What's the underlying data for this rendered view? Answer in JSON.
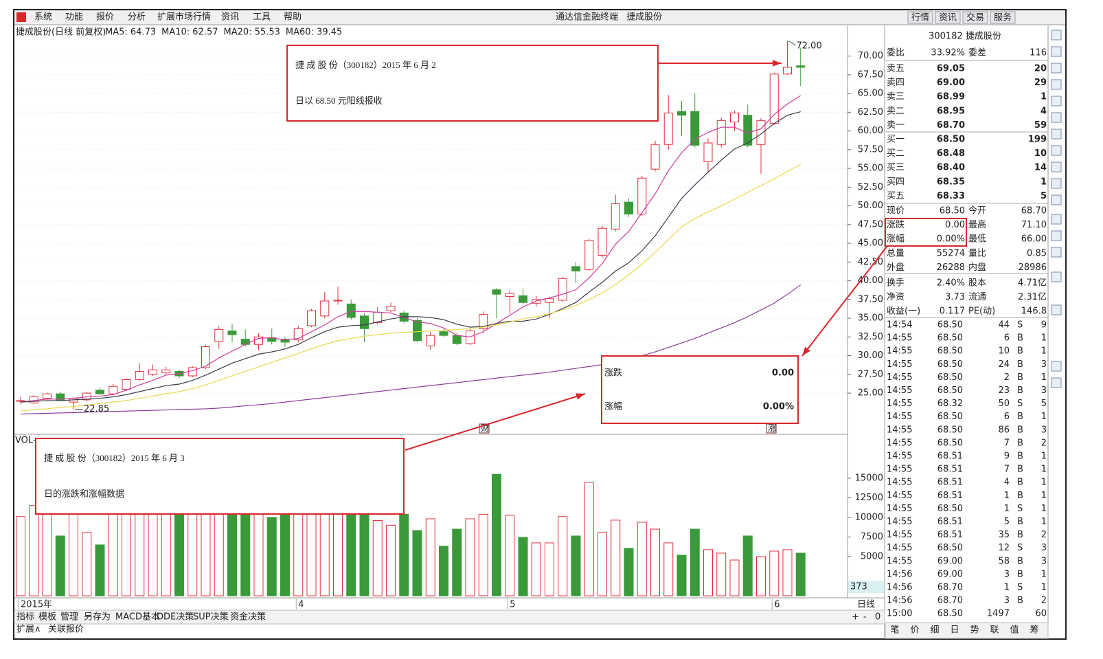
{
  "menu": {
    "items": [
      "系统",
      "功能",
      "报价",
      "分析",
      "扩展市场行情",
      "资讯",
      "工具",
      "帮助"
    ],
    "title": [
      "通达信金融终端",
      "捷成股份"
    ],
    "buttons": [
      "行情",
      "资讯",
      "交易",
      "服务"
    ]
  },
  "chart_data": {
    "type": "candlestick",
    "title": "捷成股份(日线 前复权)",
    "categories": [
      "2015年",
      null,
      null,
      null,
      null,
      null,
      null,
      null,
      null,
      null,
      null,
      null,
      null,
      null,
      null,
      null,
      null,
      null,
      null,
      null,
      null,
      "4",
      null,
      null,
      null,
      null,
      null,
      null,
      null,
      null,
      null,
      null,
      null,
      null,
      null,
      null,
      null,
      "5",
      null,
      null,
      null,
      null,
      null,
      null,
      null,
      null,
      null,
      null,
      null,
      null,
      null,
      null,
      null,
      null,
      null,
      null,
      null,
      "6",
      null,
      null
    ],
    "open": [
      24.0,
      23.7,
      24.3,
      24.9,
      23.8,
      24.1,
      25.4,
      24.9,
      25.5,
      26.8,
      27.5,
      27.7,
      27.9,
      27.3,
      28.4,
      31.9,
      33.3,
      32.2,
      31.5,
      32.4,
      32.2,
      32.1,
      34.0,
      35.3,
      37.3,
      36.9,
      35.3,
      34.4,
      36.0,
      35.7,
      34.7,
      31.3,
      33.2,
      32.7,
      31.6,
      33.6,
      38.8,
      37.9,
      38.0,
      37.0,
      37.1,
      37.4,
      41.9,
      41.5,
      43.4,
      46.9,
      50.5,
      48.9,
      54.9,
      58.2,
      62.6,
      62.6,
      55.9,
      58.2,
      61.2,
      62.1,
      58.2,
      61.0,
      67.6,
      68.7
    ],
    "close": [
      24.0,
      24.5,
      24.9,
      24.0,
      24.3,
      25.0,
      24.9,
      25.9,
      26.8,
      27.9,
      28.1,
      28.1,
      27.3,
      28.4,
      31.2,
      33.5,
      32.8,
      31.5,
      32.5,
      31.9,
      31.8,
      33.6,
      36.0,
      37.3,
      37.4,
      35.1,
      33.6,
      35.8,
      36.6,
      34.6,
      32.0,
      32.7,
      32.7,
      31.6,
      33.3,
      35.5,
      38.2,
      38.3,
      37.1,
      37.5,
      37.6,
      40.3,
      41.3,
      45.4,
      47.0,
      50.3,
      48.9,
      53.7,
      58.2,
      62.4,
      62.1,
      58.1,
      58.4,
      61.4,
      62.4,
      58.1,
      61.4,
      67.6,
      68.5,
      68.5
    ],
    "high": [
      24.5,
      24.7,
      25.1,
      25.2,
      24.5,
      25.2,
      25.8,
      26.2,
      27.0,
      29.0,
      28.8,
      28.5,
      28.1,
      28.6,
      31.4,
      34.0,
      34.2,
      33.5,
      33.0,
      33.6,
      32.5,
      34.0,
      36.2,
      38.5,
      39.2,
      37.5,
      35.6,
      36.5,
      37.1,
      36.0,
      35.0,
      33.2,
      33.6,
      33.0,
      33.6,
      35.9,
      39.0,
      38.7,
      39.0,
      38.0,
      37.8,
      40.5,
      42.5,
      45.6,
      47.3,
      51.5,
      51.0,
      54.0,
      58.7,
      64.8,
      64.0,
      65.0,
      59.0,
      61.8,
      62.7,
      63.5,
      61.7,
      67.8,
      72.0,
      71.1
    ],
    "low": [
      23.5,
      23.5,
      24.1,
      23.9,
      22.85,
      23.9,
      24.8,
      24.8,
      25.3,
      26.6,
      27.3,
      27.5,
      27.0,
      27.1,
      28.2,
      30.9,
      31.8,
      31.2,
      30.8,
      31.5,
      31.2,
      31.8,
      33.8,
      35.0,
      36.8,
      34.8,
      31.8,
      34.2,
      35.8,
      34.3,
      31.8,
      30.8,
      32.5,
      31.4,
      31.4,
      33.3,
      35.0,
      35.6,
      36.9,
      36.5,
      35.0,
      37.2,
      39.7,
      41.3,
      43.1,
      46.6,
      48.5,
      48.6,
      54.6,
      57.5,
      59.3,
      57.8,
      54.5,
      57.8,
      60.0,
      57.8,
      54.3,
      60.8,
      67.5,
      66.0
    ],
    "up_color": "#e0303a",
    "down_color": "#3a9a3a",
    "series": [
      {
        "name": "MA5: 64.73",
        "color": "#d03c9c",
        "values": [
          23.8,
          24.0,
          24.2,
          24.2,
          24.3,
          24.5,
          24.6,
          24.8,
          25.4,
          26.1,
          26.7,
          27.4,
          27.6,
          28.0,
          28.6,
          29.7,
          30.6,
          31.5,
          32.3,
          32.4,
          32.1,
          32.3,
          33.2,
          34.1,
          35.2,
          35.9,
          35.9,
          35.8,
          35.7,
          35.1,
          34.5,
          34.3,
          33.7,
          32.7,
          32.5,
          33.2,
          34.3,
          35.4,
          36.5,
          37.3,
          37.7,
          38.2,
          38.8,
          40.4,
          42.3,
          44.9,
          46.6,
          49.1,
          51.6,
          54.7,
          57.1,
          58.9,
          59.8,
          60.5,
          60.5,
          59.7,
          60.3,
          62.2,
          63.6,
          64.73
        ]
      },
      {
        "name": "MA10: 62.57",
        "color": "#3a3a4a",
        "values": [
          23.8,
          23.9,
          24.0,
          24.0,
          24.1,
          24.2,
          24.3,
          24.5,
          24.8,
          25.2,
          25.6,
          26.0,
          26.2,
          26.7,
          27.4,
          28.2,
          29.0,
          29.6,
          30.2,
          30.5,
          30.9,
          31.5,
          32.4,
          33.2,
          33.8,
          34.0,
          34.1,
          34.5,
          34.9,
          35.2,
          35.2,
          35.1,
          34.8,
          34.2,
          33.8,
          33.9,
          34.3,
          34.6,
          34.6,
          34.9,
          35.5,
          36.3,
          37.1,
          38.5,
          39.8,
          41.3,
          42.4,
          44.0,
          46.0,
          48.5,
          51.0,
          52.8,
          54.5,
          56.1,
          57.6,
          58.4,
          59.6,
          61.0,
          62.1,
          62.57
        ]
      },
      {
        "name": "MA20: 55.53",
        "color": "#e8d84a",
        "values": [
          22.6,
          22.8,
          22.9,
          23.1,
          23.2,
          23.4,
          23.6,
          23.8,
          24.0,
          24.3,
          24.6,
          24.9,
          25.2,
          25.6,
          26.1,
          26.7,
          27.3,
          27.9,
          28.5,
          29.1,
          29.7,
          30.3,
          30.9,
          31.5,
          32.0,
          32.3,
          32.6,
          32.8,
          33.0,
          33.1,
          33.2,
          33.3,
          33.4,
          33.5,
          33.6,
          33.8,
          34.1,
          34.5,
          34.9,
          35.2,
          35.6,
          36.1,
          36.7,
          37.5,
          38.4,
          39.5,
          40.8,
          42.2,
          43.8,
          45.5,
          47.2,
          48.3,
          49.2,
          50.0,
          50.9,
          51.8,
          52.7,
          53.6,
          54.6,
          55.53
        ]
      },
      {
        "name": "MA60: 39.45",
        "color": "#8a3a9a",
        "values": [
          22.2,
          22.25,
          22.3,
          22.35,
          22.4,
          22.45,
          22.5,
          22.55,
          22.6,
          22.65,
          22.7,
          22.75,
          22.8,
          22.85,
          22.9,
          23.0,
          23.15,
          23.3,
          23.45,
          23.6,
          23.8,
          24.0,
          24.2,
          24.4,
          24.6,
          24.8,
          25.0,
          25.2,
          25.4,
          25.6,
          25.8,
          26.0,
          26.2,
          26.4,
          26.6,
          26.8,
          27.0,
          27.2,
          27.4,
          27.6,
          27.8,
          28.05,
          28.3,
          28.55,
          28.8,
          29.1,
          29.5,
          30.0,
          30.5,
          31.1,
          31.7,
          32.3,
          33.0,
          33.7,
          34.4,
          35.2,
          36.1,
          37.0,
          38.2,
          39.45
        ]
      }
    ],
    "ylim": [
      19.5,
      74
    ],
    "yticks": [
      {
        "value": 70,
        "label": "70.00"
      },
      {
        "value": 67.5,
        "label": "67.50"
      },
      {
        "value": 65,
        "label": "65.00"
      },
      {
        "value": 62.5,
        "label": "62.50"
      },
      {
        "value": 60,
        "label": "60.00"
      },
      {
        "value": 57.5,
        "label": "57.50"
      },
      {
        "value": 55,
        "label": "55.00"
      },
      {
        "value": 52.5,
        "label": "52.50"
      },
      {
        "value": 50,
        "label": "50.00"
      },
      {
        "value": 47.5,
        "label": "47.50"
      },
      {
        "value": 45,
        "label": "45.00"
      },
      {
        "value": 42.5,
        "label": "42.50"
      },
      {
        "value": 40,
        "label": "40.00"
      },
      {
        "value": 37.5,
        "label": "37.50"
      },
      {
        "value": 35,
        "label": "35.00"
      },
      {
        "value": 32.5,
        "label": "32.50"
      },
      {
        "value": 30,
        "label": "30.00"
      },
      {
        "value": 27.5,
        "label": "27.50"
      },
      {
        "value": 25,
        "label": "25.00"
      }
    ],
    "grid": true,
    "high_label": "72.00",
    "low_label": "22.85",
    "badges": [
      "财",
      "涨"
    ],
    "volume": {
      "label": "VOL-",
      "values": [
        10100,
        11500,
        12000,
        7630,
        13000,
        8070,
        6490,
        14000,
        12000,
        13000,
        12000,
        11000,
        10500,
        14000,
        16000,
        17000,
        13000,
        12500,
        11000,
        10000,
        11000,
        12000,
        11500,
        13500,
        12000,
        10800,
        10400,
        9600,
        9000,
        10400,
        8330,
        9820,
        6320,
        8500,
        9820,
        10400,
        15500,
        10260,
        7460,
        6750,
        6750,
        10100,
        7630,
        14470,
        8070,
        9650,
        6050,
        9390,
        8500,
        6750,
        5180,
        8500,
        5880,
        5440,
        4560,
        7630,
        5000,
        5700,
        5880,
        5440
      ],
      "ylim": [
        0,
        20600
      ],
      "yticks": [
        15000,
        12500,
        10000,
        7500,
        5000
      ],
      "side_label": "373"
    }
  },
  "annotations": [
    {
      "lines": [
        "捷 成 股 份（300182）2015 年 6 月 2",
        "日以 68.50 元阳线报收"
      ]
    },
    {
      "lines": [
        "捷 成 股 份（300182）2015 年 6 月 3",
        "日的涨跌和涨幅数据"
      ]
    }
  ],
  "callout": {
    "rows": [
      [
        "涨跌",
        "0.00"
      ],
      [
        "涨幅",
        "0.00%"
      ]
    ]
  },
  "quote": {
    "header": "300182 捷成股份",
    "ratio": [
      "委比",
      "33.92%",
      "委差",
      "116"
    ],
    "sells": [
      [
        "卖五",
        "69.05",
        "20"
      ],
      [
        "卖四",
        "69.00",
        "29"
      ],
      [
        "卖三",
        "68.99",
        "1"
      ],
      [
        "卖二",
        "68.95",
        "4"
      ],
      [
        "卖一",
        "68.70",
        "59"
      ]
    ],
    "buys": [
      [
        "买一",
        "68.50",
        "199"
      ],
      [
        "买二",
        "68.48",
        "10"
      ],
      [
        "买三",
        "68.40",
        "14"
      ],
      [
        "买四",
        "68.35",
        "1"
      ],
      [
        "买五",
        "68.33",
        "5"
      ]
    ],
    "stats": [
      [
        "现价",
        "68.50",
        "今开",
        "68.70"
      ],
      [
        "涨跌",
        "0.00",
        "最高",
        "71.10"
      ],
      [
        "涨幅",
        "0.00%",
        "最低",
        "66.00"
      ],
      [
        "总量",
        "55274",
        "量比",
        "0.85"
      ],
      [
        "外盘",
        "26288",
        "内盘",
        "28986"
      ],
      [
        "换手",
        "2.40%",
        "股本",
        "4.71亿"
      ],
      [
        "净资",
        "3.73",
        "流通",
        "2.31亿"
      ],
      [
        "收益(一)",
        "0.117",
        "PE(动)",
        "146.8"
      ]
    ],
    "stat_colors": [
      [
        "#000",
        "#d00"
      ],
      [
        "#000",
        "#d00"
      ],
      [
        "#000",
        "#090"
      ],
      [
        "#d00",
        "#090"
      ],
      [
        "#d00",
        "#090"
      ],
      [
        "#000",
        "#000"
      ],
      [
        "#000",
        "#000"
      ],
      [
        "#000",
        "#000"
      ]
    ],
    "ticks": [
      [
        "14:54",
        "68.50",
        "44",
        "S",
        "9"
      ],
      [
        "14:55",
        "68.50",
        "6",
        "B",
        "1"
      ],
      [
        "14:55",
        "68.50",
        "10",
        "B",
        "1"
      ],
      [
        "14:55",
        "68.50",
        "24",
        "B",
        "3"
      ],
      [
        "14:55",
        "68.50",
        "2",
        "B",
        "1"
      ],
      [
        "14:55",
        "68.50",
        "23",
        "B",
        "3"
      ],
      [
        "14:55",
        "68.32",
        "50",
        "S",
        "5"
      ],
      [
        "14:55",
        "68.50",
        "6",
        "B",
        "1"
      ],
      [
        "14:55",
        "68.50",
        "86",
        "B",
        "3"
      ],
      [
        "14:55",
        "68.50",
        "7",
        "B",
        "2"
      ],
      [
        "14:55",
        "68.51",
        "9",
        "B",
        "1"
      ],
      [
        "14:55",
        "68.51",
        "7",
        "B",
        "1"
      ],
      [
        "14:55",
        "68.51",
        "4",
        "B",
        "1"
      ],
      [
        "14:55",
        "68.51",
        "1",
        "B",
        "1"
      ],
      [
        "14:55",
        "68.50",
        "1",
        "S",
        "1"
      ],
      [
        "14:55",
        "68.51",
        "5",
        "B",
        "1"
      ],
      [
        "14:55",
        "68.51",
        "35",
        "B",
        "2"
      ],
      [
        "14:55",
        "68.50",
        "12",
        "S",
        "3"
      ],
      [
        "14:55",
        "69.00",
        "58",
        "B",
        "3"
      ],
      [
        "14:56",
        "69.00",
        "3",
        "B",
        "1"
      ],
      [
        "14:56",
        "68.70",
        "1",
        "S",
        "1"
      ],
      [
        "14:56",
        "68.70",
        "3",
        "B",
        "2"
      ],
      [
        "15:00",
        "68.50",
        "1497",
        "",
        "60"
      ]
    ],
    "tabs": [
      "笔",
      "价",
      "细",
      "日",
      "势",
      "联",
      "值",
      "筹"
    ]
  },
  "bottom": {
    "tabs": [
      "指标",
      "模板",
      "管理",
      "另存为",
      "MACD基本",
      "DDE决策",
      "SUP决策",
      "资金决策"
    ],
    "tabs2": [
      "扩展∧",
      "关联报价"
    ],
    "period": "日线",
    "controls": [
      "+",
      "-",
      "0"
    ]
  }
}
